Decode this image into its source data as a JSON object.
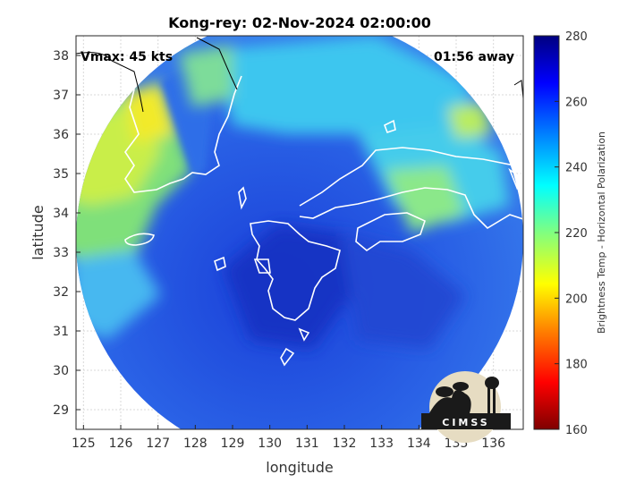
{
  "title": "Kong-rey: 02-Nov-2024 02:00:00",
  "vmax_label": "Vmax: 45 kts",
  "time_away_label": "01:56 away",
  "xlabel": "longitude",
  "ylabel": "latitude",
  "x_ticks": [
    "125",
    "126",
    "127",
    "128",
    "129",
    "130",
    "131",
    "132",
    "133",
    "134",
    "135",
    "136"
  ],
  "y_ticks": [
    "38",
    "37",
    "36",
    "35",
    "34",
    "33",
    "32",
    "31",
    "30",
    "29"
  ],
  "xlim": [
    124.8,
    136.8
  ],
  "ylim": [
    28.5,
    38.5
  ],
  "colorbar": {
    "label": "Brightness Temp - Horizontal Polarization",
    "ticks": [
      "280",
      "260",
      "240",
      "220",
      "200",
      "180",
      "160"
    ],
    "range": [
      160,
      280
    ],
    "colors": [
      "#7f0000",
      "#ff0000",
      "#ff8000",
      "#ffff00",
      "#80ff80",
      "#00ffff",
      "#0080ff",
      "#0000ff",
      "#000080"
    ]
  },
  "logo_text": "CIMSS"
}
